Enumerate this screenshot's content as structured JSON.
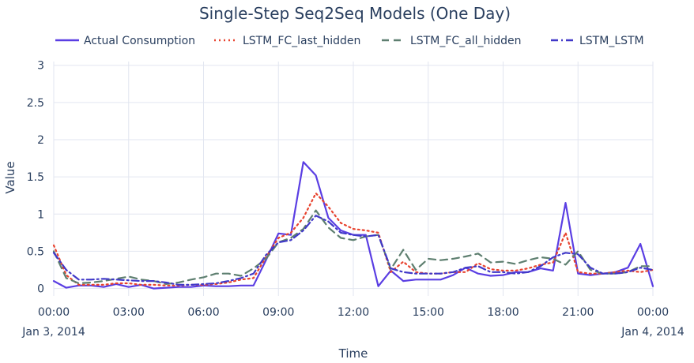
{
  "chart_data": {
    "type": "line",
    "title": "Single-Step Seq2Seq Models (One Day)",
    "xlabel": "Time",
    "ylabel": "Value",
    "x_unit": "hours from Jan 3, 2014 00:00",
    "xlim": [
      0,
      24
    ],
    "ylim": [
      -0.1,
      3.05
    ],
    "grid": true,
    "legend_position": "top",
    "x_ticks": [
      {
        "x": 0,
        "label": "00:00",
        "sublabel": "Jan 3, 2014"
      },
      {
        "x": 3,
        "label": "03:00",
        "sublabel": ""
      },
      {
        "x": 6,
        "label": "06:00",
        "sublabel": ""
      },
      {
        "x": 9,
        "label": "09:00",
        "sublabel": ""
      },
      {
        "x": 12,
        "label": "12:00",
        "sublabel": ""
      },
      {
        "x": 15,
        "label": "15:00",
        "sublabel": ""
      },
      {
        "x": 18,
        "label": "18:00",
        "sublabel": ""
      },
      {
        "x": 21,
        "label": "21:00",
        "sublabel": ""
      },
      {
        "x": 24,
        "label": "00:00",
        "sublabel": "Jan 4, 2014"
      }
    ],
    "y_ticks": [
      {
        "y": 0,
        "label": "0"
      },
      {
        "y": 0.5,
        "label": "0.5"
      },
      {
        "y": 1,
        "label": "1"
      },
      {
        "y": 1.5,
        "label": "1.5"
      },
      {
        "y": 2,
        "label": "2"
      },
      {
        "y": 2.5,
        "label": "2.5"
      },
      {
        "y": 3,
        "label": "3"
      }
    ],
    "series": [
      {
        "name": "Actual Consumption",
        "color": "#5a3ee3",
        "dash": "solid",
        "x": [
          0,
          0.5,
          1,
          1.5,
          2,
          2.5,
          3,
          3.5,
          4,
          4.5,
          5,
          5.5,
          6,
          6.5,
          7,
          7.5,
          8,
          8.5,
          9,
          9.5,
          10,
          10.5,
          11,
          11.5,
          12,
          12.5,
          13,
          13.5,
          14,
          14.5,
          15,
          15.5,
          16,
          16.5,
          17,
          17.5,
          18,
          18.5,
          19,
          19.5,
          20,
          20.5,
          21,
          21.5,
          22,
          22.5,
          23,
          23.5,
          24
        ],
        "values": [
          0.1,
          0.01,
          0.04,
          0.04,
          0.02,
          0.06,
          0.02,
          0.05,
          0.0,
          0.01,
          0.02,
          0.02,
          0.04,
          0.03,
          0.03,
          0.04,
          0.04,
          0.38,
          0.74,
          0.72,
          1.7,
          1.52,
          0.95,
          0.78,
          0.72,
          0.72,
          0.03,
          0.24,
          0.1,
          0.12,
          0.12,
          0.12,
          0.18,
          0.28,
          0.2,
          0.17,
          0.18,
          0.22,
          0.22,
          0.27,
          0.24,
          1.15,
          0.2,
          0.18,
          0.2,
          0.22,
          0.28,
          0.6,
          0.03
        ]
      },
      {
        "name": "LSTM_FC_last_hidden",
        "color": "#e8432f",
        "dash": "dot",
        "x": [
          0,
          0.5,
          1,
          1.5,
          2,
          2.5,
          3,
          3.5,
          4,
          4.5,
          5,
          5.5,
          6,
          6.5,
          7,
          7.5,
          8,
          8.5,
          9,
          9.5,
          10,
          10.5,
          11,
          11.5,
          12,
          12.5,
          13,
          13.5,
          14,
          14.5,
          15,
          15.5,
          16,
          16.5,
          17,
          17.5,
          18,
          18.5,
          19,
          19.5,
          20,
          20.5,
          21,
          21.5,
          22,
          22.5,
          23,
          23.5,
          24
        ],
        "values": [
          0.58,
          0.18,
          0.05,
          0.05,
          0.05,
          0.07,
          0.07,
          0.05,
          0.05,
          0.04,
          0.04,
          0.05,
          0.05,
          0.06,
          0.08,
          0.12,
          0.14,
          0.42,
          0.68,
          0.75,
          0.95,
          1.28,
          1.1,
          0.88,
          0.8,
          0.78,
          0.75,
          0.22,
          0.36,
          0.22,
          0.2,
          0.2,
          0.22,
          0.22,
          0.34,
          0.26,
          0.24,
          0.24,
          0.27,
          0.32,
          0.35,
          0.75,
          0.22,
          0.2,
          0.2,
          0.22,
          0.24,
          0.22,
          0.25
        ]
      },
      {
        "name": "LSTM_FC_all_hidden",
        "color": "#5e7f70",
        "dash": "dash",
        "x": [
          0,
          0.5,
          1,
          1.5,
          2,
          2.5,
          3,
          3.5,
          4,
          4.5,
          5,
          5.5,
          6,
          6.5,
          7,
          7.5,
          8,
          8.5,
          9,
          9.5,
          10,
          10.5,
          11,
          11.5,
          12,
          12.5,
          13,
          13.5,
          14,
          14.5,
          15,
          15.5,
          16,
          16.5,
          17,
          17.5,
          18,
          18.5,
          19,
          19.5,
          20,
          20.5,
          21,
          21.5,
          22,
          22.5,
          23,
          23.5,
          24
        ],
        "values": [
          0.5,
          0.14,
          0.07,
          0.08,
          0.1,
          0.13,
          0.16,
          0.12,
          0.1,
          0.06,
          0.08,
          0.12,
          0.15,
          0.2,
          0.2,
          0.17,
          0.27,
          0.4,
          0.62,
          0.68,
          0.8,
          1.05,
          0.82,
          0.68,
          0.65,
          0.7,
          0.72,
          0.26,
          0.52,
          0.25,
          0.4,
          0.38,
          0.4,
          0.43,
          0.47,
          0.35,
          0.36,
          0.33,
          0.38,
          0.42,
          0.4,
          0.32,
          0.5,
          0.25,
          0.2,
          0.2,
          0.22,
          0.3,
          0.3
        ]
      },
      {
        "name": "LSTM_LSTM",
        "color": "#4038c8",
        "dash": "dashdot",
        "x": [
          0,
          0.5,
          1,
          1.5,
          2,
          2.5,
          3,
          3.5,
          4,
          4.5,
          5,
          5.5,
          6,
          6.5,
          7,
          7.5,
          8,
          8.5,
          9,
          9.5,
          10,
          10.5,
          11,
          11.5,
          12,
          12.5,
          13,
          13.5,
          14,
          14.5,
          15,
          15.5,
          16,
          16.5,
          17,
          17.5,
          18,
          18.5,
          19,
          19.5,
          20,
          20.5,
          21,
          21.5,
          22,
          22.5,
          23,
          23.5,
          24
        ],
        "values": [
          0.48,
          0.25,
          0.12,
          0.12,
          0.13,
          0.12,
          0.11,
          0.1,
          0.1,
          0.08,
          0.05,
          0.05,
          0.06,
          0.07,
          0.1,
          0.14,
          0.2,
          0.45,
          0.62,
          0.65,
          0.78,
          0.98,
          0.9,
          0.75,
          0.72,
          0.7,
          0.72,
          0.27,
          0.22,
          0.2,
          0.2,
          0.2,
          0.22,
          0.28,
          0.3,
          0.22,
          0.22,
          0.2,
          0.22,
          0.3,
          0.42,
          0.48,
          0.46,
          0.28,
          0.2,
          0.2,
          0.22,
          0.28,
          0.25
        ]
      }
    ]
  }
}
